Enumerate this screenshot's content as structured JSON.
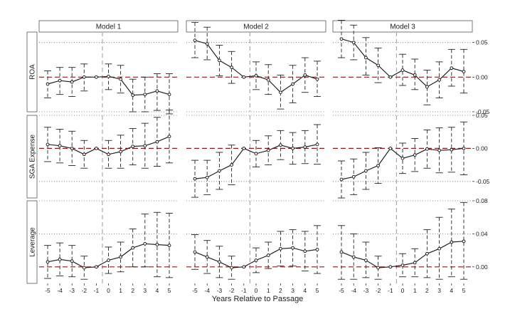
{
  "chart_data": {
    "type": "line",
    "xlabel": "Years Relative to Passage",
    "x": [
      -5,
      -4,
      -3,
      -2,
      -1,
      0,
      1,
      2,
      3,
      4,
      5
    ],
    "x_tick_labels": [
      "-5",
      "-4",
      "-3",
      "-2",
      "-1",
      "0",
      "1",
      "2",
      "3",
      "4",
      "5"
    ],
    "columns": [
      "Model 1",
      "Model 2",
      "Model 3"
    ],
    "rows": [
      {
        "label": "ROA",
        "ylim": [
          -0.05,
          0.065
        ],
        "ticks": [
          -0.05,
          0.0,
          0.05
        ],
        "tick_labels": [
          "-0.05",
          "0.00",
          "0.05"
        ],
        "gridlines": [
          -0.05,
          0.05
        ]
      },
      {
        "label": "SGA Expense",
        "ylim": [
          -0.075,
          0.05
        ],
        "ticks": [
          -0.05,
          0.0,
          0.05
        ],
        "tick_labels": [
          "-0.05",
          "0.00",
          "0.05"
        ],
        "gridlines": [
          -0.05,
          0.05
        ]
      },
      {
        "label": "Leverage",
        "ylim": [
          -0.02,
          0.08
        ],
        "ticks": [
          0.0,
          0.04,
          0.08
        ],
        "tick_labels": [
          "0.00",
          "0.04",
          "0.08"
        ],
        "gridlines": [
          0.04,
          0.08
        ]
      }
    ],
    "panels": [
      {
        "row": "ROA",
        "model": "Model 1",
        "y": [
          -0.01,
          -0.005,
          -0.007,
          0.0,
          0.0,
          0.001,
          -0.003,
          -0.026,
          -0.025,
          -0.02,
          -0.025
        ],
        "lower": [
          -0.03,
          -0.025,
          -0.028,
          -0.02,
          0.0,
          -0.018,
          -0.023,
          -0.05,
          -0.05,
          -0.048,
          -0.053
        ],
        "upper": [
          0.009,
          0.014,
          0.014,
          0.019,
          0.0,
          0.019,
          0.017,
          -0.003,
          0.0,
          0.005,
          0.005
        ]
      },
      {
        "row": "ROA",
        "model": "Model 2",
        "y": [
          0.053,
          0.048,
          0.024,
          0.014,
          0.0,
          0.002,
          -0.004,
          -0.022,
          -0.01,
          0.003,
          -0.003
        ],
        "lower": [
          0.028,
          0.025,
          0.002,
          -0.009,
          0.0,
          -0.018,
          -0.025,
          -0.046,
          -0.037,
          -0.022,
          -0.028
        ],
        "upper": [
          0.079,
          0.072,
          0.046,
          0.037,
          0.0,
          0.022,
          0.018,
          0.003,
          0.017,
          0.028,
          0.023
        ]
      },
      {
        "row": "ROA",
        "model": "Model 3",
        "y": [
          0.055,
          0.05,
          0.028,
          0.017,
          0.0,
          0.01,
          0.003,
          -0.014,
          -0.004,
          0.013,
          0.008
        ],
        "lower": [
          0.028,
          0.025,
          0.003,
          -0.008,
          0.0,
          -0.012,
          -0.018,
          -0.04,
          -0.03,
          -0.013,
          -0.023
        ],
        "upper": [
          0.082,
          0.075,
          0.057,
          0.042,
          0.0,
          0.033,
          0.026,
          0.01,
          0.022,
          0.04,
          0.04
        ]
      },
      {
        "row": "SGA Expense",
        "model": "Model 1",
        "y": [
          0.006,
          0.004,
          0.0,
          -0.009,
          0.0,
          -0.009,
          -0.005,
          0.003,
          0.004,
          0.01,
          0.018
        ],
        "lower": [
          -0.02,
          -0.022,
          -0.026,
          -0.03,
          0.0,
          -0.03,
          -0.03,
          -0.025,
          -0.03,
          -0.027,
          -0.022
        ],
        "upper": [
          0.032,
          0.029,
          0.026,
          0.012,
          0.0,
          0.012,
          0.02,
          0.03,
          0.038,
          0.047,
          0.058
        ]
      },
      {
        "row": "SGA Expense",
        "model": "Model 2",
        "y": [
          -0.046,
          -0.044,
          -0.034,
          -0.025,
          0.0,
          -0.008,
          -0.003,
          0.005,
          0.0,
          0.002,
          0.006
        ],
        "lower": [
          -0.074,
          -0.07,
          -0.062,
          -0.055,
          0.0,
          -0.028,
          -0.025,
          -0.017,
          -0.024,
          -0.023,
          -0.024
        ],
        "upper": [
          -0.018,
          -0.018,
          -0.006,
          0.005,
          0.0,
          0.012,
          0.019,
          0.027,
          0.024,
          0.027,
          0.036
        ]
      },
      {
        "row": "SGA Expense",
        "model": "Model 3",
        "y": [
          -0.047,
          -0.043,
          -0.034,
          -0.026,
          0.0,
          -0.015,
          -0.01,
          -0.001,
          -0.003,
          -0.002,
          0.0
        ],
        "lower": [
          -0.075,
          -0.07,
          -0.062,
          -0.053,
          0.0,
          -0.038,
          -0.035,
          -0.03,
          -0.037,
          -0.036,
          -0.04
        ],
        "upper": [
          -0.019,
          -0.016,
          -0.006,
          0.001,
          0.0,
          0.008,
          0.015,
          0.028,
          0.031,
          0.032,
          0.04
        ]
      },
      {
        "row": "Leverage",
        "model": "Model 1",
        "y": [
          0.006,
          0.009,
          0.007,
          -0.001,
          0.0,
          0.008,
          0.012,
          0.023,
          0.028,
          0.027,
          0.026
        ],
        "lower": [
          -0.014,
          -0.011,
          -0.012,
          -0.015,
          0.0,
          -0.008,
          -0.006,
          0.0,
          0.0,
          -0.012,
          -0.013
        ],
        "upper": [
          0.026,
          0.029,
          0.026,
          0.013,
          0.0,
          0.024,
          0.03,
          0.046,
          0.064,
          0.066,
          0.065
        ]
      },
      {
        "row": "Leverage",
        "model": "Model 2",
        "y": [
          0.018,
          0.012,
          0.006,
          -0.001,
          0.0,
          0.008,
          0.014,
          0.022,
          0.023,
          0.019,
          0.021
        ],
        "lower": [
          -0.003,
          -0.008,
          -0.013,
          -0.015,
          0.0,
          -0.007,
          -0.002,
          0.001,
          0.001,
          -0.005,
          -0.008
        ],
        "upper": [
          0.039,
          0.032,
          0.025,
          0.013,
          0.0,
          0.023,
          0.03,
          0.043,
          0.045,
          0.043,
          0.05
        ]
      },
      {
        "row": "Leverage",
        "model": "Model 3",
        "y": [
          0.018,
          0.012,
          0.008,
          -0.001,
          0.0,
          0.002,
          0.005,
          0.016,
          0.022,
          0.03,
          0.031
        ],
        "lower": [
          -0.015,
          -0.015,
          -0.013,
          -0.015,
          0.0,
          -0.012,
          -0.012,
          -0.013,
          -0.015,
          -0.012,
          -0.015
        ],
        "upper": [
          0.05,
          0.04,
          0.03,
          0.013,
          0.0,
          0.016,
          0.022,
          0.045,
          0.06,
          0.07,
          0.078
        ]
      }
    ],
    "colors": {
      "line": "#222222",
      "zero_line": "#8b1a1a",
      "event_line": "#aaaaaa",
      "grid": "#888888",
      "strip_fill": "#ffffff",
      "strip_border": "#555555"
    },
    "grid": true
  }
}
